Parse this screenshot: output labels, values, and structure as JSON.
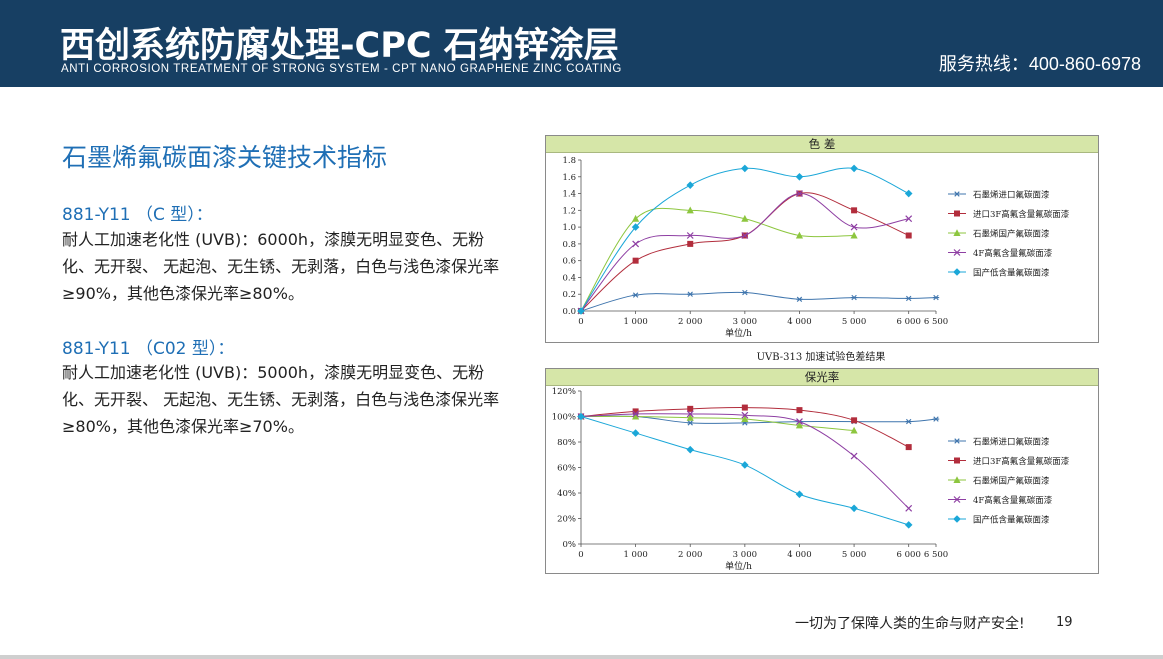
{
  "header": {
    "title": "西创系统防腐处理-CPC 石纳锌涂层",
    "subtitle": "ANTI CORROSION TREATMENT OF STRONG SYSTEM - CPT NANO GRAPHENE ZINC COATING",
    "hotline": "服务热线：400-860-6978"
  },
  "section": {
    "title": "石墨烯氟碳面漆关键技术指标",
    "items": [
      {
        "model": "881-Y11 （C 型）：",
        "text": "耐人工加速老化性 (UVB)：6000h，漆膜无明显变色、无粉化、无开裂、 无起泡、无生锈、无剥落，白色与浅色漆保光率≥90%，其他色漆保光率≥80%。"
      },
      {
        "model": "881-Y11 （C02 型）：",
        "text": "耐人工加速老化性 (UVB)：5000h，漆膜无明显变色、无粉化、无开裂、 无起泡、无生锈、无剥落，白色与浅色漆保光率≥80%，其他色漆保光率≥70%。"
      }
    ]
  },
  "footer": {
    "slogan": "一切为了保障人类的生命与财产安全!",
    "page": "19"
  },
  "chart_data": [
    {
      "type": "line",
      "title": "色 差",
      "caption": "UVB-313 加速试验色差结果",
      "xlabel": "单位/h",
      "x_ticks": [
        "0",
        "1 000",
        "2 000",
        "3 000",
        "4 000",
        "5 000",
        "6 000",
        "6 500"
      ],
      "y_ticks": [
        "0.0",
        "0.2",
        "0.4",
        "0.6",
        "0.8",
        "1.0",
        "1.2",
        "1.4",
        "1.6",
        "1.8"
      ],
      "xlim": [
        0,
        6500
      ],
      "ylim": [
        0,
        1.8
      ],
      "legend": "right",
      "series": [
        {
          "name": "石墨烯进口氟碳面漆",
          "color": "#3f75ad",
          "marker": "asterisk",
          "x": [
            0,
            1000,
            2000,
            3000,
            4000,
            5000,
            6000,
            6500
          ],
          "y": [
            0.0,
            0.19,
            0.2,
            0.22,
            0.14,
            0.16,
            0.15,
            0.16
          ]
        },
        {
          "name": "进口3F高氟含量氟碳面漆",
          "color": "#b22d3c",
          "marker": "square",
          "x": [
            0,
            1000,
            2000,
            3000,
            4000,
            5000,
            6000
          ],
          "y": [
            0.0,
            0.6,
            0.8,
            0.9,
            1.4,
            1.2,
            0.9
          ]
        },
        {
          "name": "石墨烯国产氟碳面漆",
          "color": "#8dc63f",
          "marker": "triangle",
          "x": [
            0,
            1000,
            2000,
            3000,
            4000,
            5000
          ],
          "y": [
            0.0,
            1.1,
            1.2,
            1.1,
            0.9,
            0.9
          ]
        },
        {
          "name": "4F高氟含量氟碳面漆",
          "color": "#8e3fa3",
          "marker": "cross",
          "x": [
            0,
            1000,
            2000,
            3000,
            4000,
            5000,
            6000
          ],
          "y": [
            0.0,
            0.8,
            0.9,
            0.9,
            1.4,
            1.0,
            1.1
          ]
        },
        {
          "name": "国产低含量氟碳面漆",
          "color": "#1ba7d8",
          "marker": "diamond",
          "x": [
            0,
            1000,
            2000,
            3000,
            4000,
            5000,
            6000
          ],
          "y": [
            0.0,
            1.0,
            1.5,
            1.7,
            1.6,
            1.7,
            1.4
          ]
        }
      ]
    },
    {
      "type": "line",
      "title": "保光率",
      "xlabel": "单位/h",
      "x_ticks": [
        "0",
        "1 000",
        "2 000",
        "3 000",
        "4 000",
        "5 000",
        "6 000",
        "6 500"
      ],
      "y_ticks": [
        "0%",
        "20%",
        "40%",
        "60%",
        "80%",
        "100%",
        "120%"
      ],
      "xlim": [
        0,
        6500
      ],
      "ylim": [
        0,
        120
      ],
      "legend": "right",
      "series": [
        {
          "name": "石墨烯进口氟碳面漆",
          "color": "#3f75ad",
          "marker": "asterisk",
          "x": [
            0,
            1000,
            2000,
            3000,
            4000,
            5000,
            6000,
            6500
          ],
          "y": [
            100,
            100,
            95,
            95,
            96,
            96,
            96,
            98
          ]
        },
        {
          "name": "进口3F高氟含量氟碳面漆",
          "color": "#b22d3c",
          "marker": "square",
          "x": [
            0,
            1000,
            2000,
            3000,
            4000,
            5000,
            6000
          ],
          "y": [
            100,
            104,
            106,
            107,
            105,
            97,
            76
          ]
        },
        {
          "name": "石墨烯国产氟碳面漆",
          "color": "#8dc63f",
          "marker": "triangle",
          "x": [
            0,
            1000,
            2000,
            3000,
            4000,
            5000
          ],
          "y": [
            100,
            100,
            99,
            98,
            93,
            89
          ]
        },
        {
          "name": "4F高氟含量氟碳面漆",
          "color": "#8e3fa3",
          "marker": "cross",
          "x": [
            0,
            1000,
            2000,
            3000,
            4000,
            5000,
            6000
          ],
          "y": [
            100,
            102,
            102,
            101,
            96,
            69,
            28
          ]
        },
        {
          "name": "国产低含量氟碳面漆",
          "color": "#1ba7d8",
          "marker": "diamond",
          "x": [
            0,
            1000,
            2000,
            3000,
            4000,
            5000,
            6000
          ],
          "y": [
            100,
            87,
            74,
            62,
            39,
            28,
            15
          ]
        }
      ]
    }
  ]
}
